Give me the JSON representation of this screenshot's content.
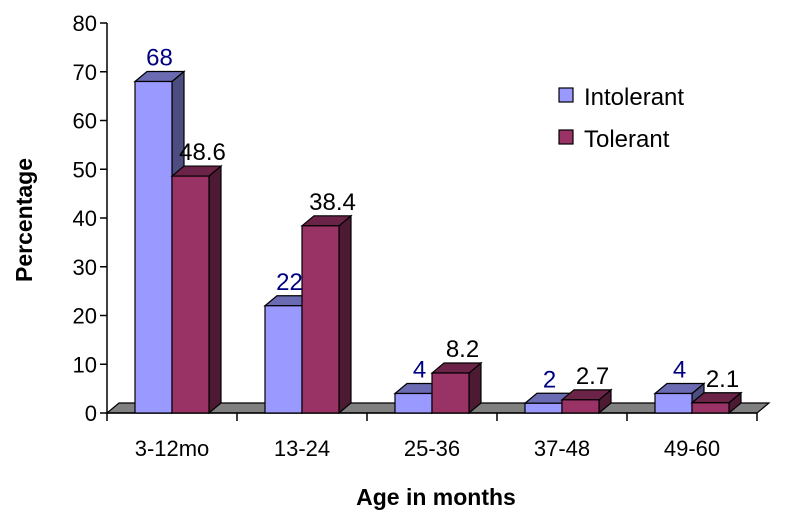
{
  "chart_data": {
    "type": "bar",
    "title": "",
    "xlabel": "Age in months",
    "ylabel": "Percentage",
    "ylim": [
      0,
      80
    ],
    "yticks": [
      "0",
      "10",
      "20",
      "30",
      "40",
      "50",
      "60",
      "70",
      "80"
    ],
    "categories": [
      "3-12mo",
      "13-24",
      "25-36",
      "37-48",
      "49-60"
    ],
    "series": [
      {
        "name": "Intolerant",
        "values": [
          68,
          22,
          4,
          2,
          4
        ],
        "labels": [
          "68",
          "22",
          "4",
          "2",
          "4"
        ],
        "color": "#9999ff",
        "label_color": "#000080"
      },
      {
        "name": "Tolerant",
        "values": [
          48.6,
          38.4,
          8.2,
          2.7,
          2.1
        ],
        "labels": [
          "48.6",
          "38.4",
          "8.2",
          "2.7",
          "2.1"
        ],
        "color": "#993366",
        "label_color": "#000000"
      }
    ],
    "legend_position": "top-right",
    "grid": false,
    "style": "3d-clustered-column"
  }
}
